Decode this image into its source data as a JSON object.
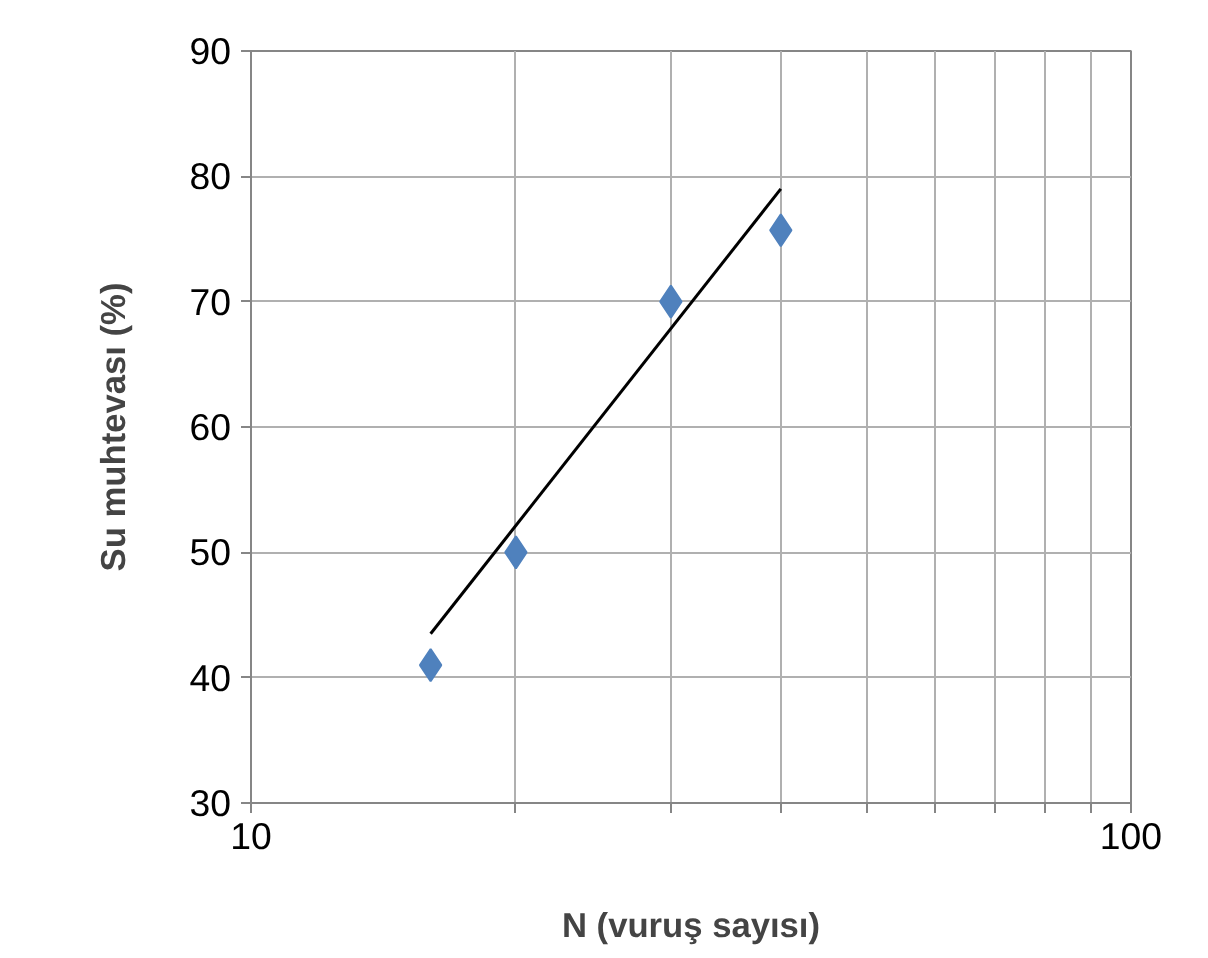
{
  "chart_data": {
    "type": "scatter",
    "xlabel": "N (vuruş sayısı)",
    "ylabel": "Su muhtevası (%)",
    "log": "x",
    "grid": true,
    "xlim": [
      10,
      100
    ],
    "xticks": [
      10,
      {
        "value": 20,
        "label": null
      },
      {
        "value": 30,
        "label": null
      },
      {
        "value": 40,
        "label": null
      },
      {
        "value": 50,
        "label": null
      },
      {
        "value": 60,
        "label": null
      },
      {
        "value": 70,
        "label": null
      },
      {
        "value": 80,
        "label": null
      },
      {
        "value": 90,
        "label": null
      },
      100
    ],
    "ylim": [
      30,
      90
    ],
    "yticks": [
      30,
      40,
      50,
      60,
      70,
      80,
      90
    ],
    "series": [
      {
        "marker": "diamond",
        "color": "#4f81bd",
        "x": [
          16,
          20,
          30,
          40
        ],
        "values": [
          41,
          50,
          70,
          75.7
        ]
      },
      {
        "type": "line",
        "marker": "none",
        "line_style": "solid",
        "color": "#000000",
        "x": [
          16,
          40
        ],
        "values": [
          43.5,
          79
        ]
      }
    ]
  }
}
